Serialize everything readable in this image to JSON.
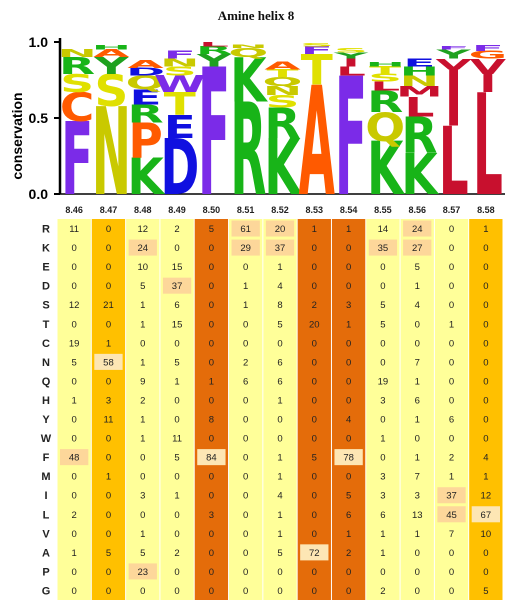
{
  "chart_data": [
    {
      "type": "sequence-logo",
      "title": "Amine helix 8",
      "ylabel": "conservation",
      "ylim": [
        0,
        1.0
      ],
      "yticks": [
        "0.0",
        "0.5",
        "1.0"
      ],
      "positions": [
        "8.46",
        "8.47",
        "8.48",
        "8.49",
        "8.50",
        "8.51",
        "8.52",
        "8.53",
        "8.54",
        "8.55",
        "8.56",
        "8.57",
        "8.58"
      ]
    },
    {
      "type": "heatmap",
      "title": "",
      "rows": [
        "R",
        "K",
        "E",
        "D",
        "S",
        "T",
        "C",
        "N",
        "Q",
        "H",
        "Y",
        "W",
        "F",
        "M",
        "I",
        "L",
        "V",
        "A",
        "P",
        "G"
      ],
      "columns": [
        "8.46",
        "8.47",
        "8.48",
        "8.49",
        "8.50",
        "8.51",
        "8.52",
        "8.53",
        "8.54",
        "8.55",
        "8.56",
        "8.57",
        "8.58"
      ],
      "values": [
        [
          11,
          0,
          12,
          2,
          5,
          61,
          20,
          1,
          1,
          14,
          24,
          0,
          1
        ],
        [
          0,
          0,
          24,
          0,
          0,
          29,
          37,
          0,
          0,
          35,
          27,
          0,
          0
        ],
        [
          0,
          0,
          10,
          15,
          0,
          0,
          1,
          0,
          0,
          0,
          5,
          0,
          0
        ],
        [
          0,
          0,
          5,
          37,
          0,
          1,
          4,
          0,
          0,
          0,
          1,
          0,
          0
        ],
        [
          12,
          21,
          1,
          6,
          0,
          1,
          8,
          2,
          3,
          5,
          4,
          0,
          0
        ],
        [
          0,
          0,
          1,
          15,
          0,
          0,
          5,
          20,
          1,
          5,
          0,
          1,
          0
        ],
        [
          19,
          1,
          0,
          0,
          0,
          0,
          0,
          0,
          0,
          0,
          0,
          0,
          0
        ],
        [
          5,
          58,
          1,
          5,
          0,
          2,
          6,
          0,
          0,
          0,
          7,
          0,
          0
        ],
        [
          0,
          0,
          9,
          1,
          1,
          6,
          6,
          0,
          0,
          19,
          1,
          0,
          0
        ],
        [
          1,
          3,
          2,
          0,
          0,
          0,
          1,
          0,
          0,
          3,
          6,
          0,
          0
        ],
        [
          0,
          11,
          1,
          0,
          8,
          0,
          0,
          0,
          4,
          0,
          1,
          6,
          0
        ],
        [
          0,
          0,
          1,
          11,
          0,
          0,
          0,
          0,
          0,
          1,
          0,
          0,
          0
        ],
        [
          48,
          0,
          0,
          5,
          84,
          0,
          1,
          5,
          78,
          0,
          1,
          2,
          4
        ],
        [
          0,
          1,
          0,
          0,
          0,
          0,
          1,
          0,
          0,
          3,
          7,
          1,
          1
        ],
        [
          0,
          0,
          3,
          1,
          0,
          0,
          4,
          0,
          5,
          3,
          3,
          37,
          12
        ],
        [
          2,
          0,
          0,
          0,
          3,
          0,
          1,
          0,
          6,
          6,
          13,
          45,
          67
        ],
        [
          0,
          0,
          1,
          0,
          0,
          0,
          1,
          0,
          1,
          1,
          1,
          7,
          10
        ],
        [
          1,
          5,
          5,
          2,
          0,
          0,
          5,
          72,
          2,
          1,
          0,
          0,
          0
        ],
        [
          0,
          0,
          23,
          0,
          0,
          0,
          0,
          0,
          0,
          0,
          0,
          0,
          0
        ],
        [
          0,
          0,
          0,
          0,
          0,
          0,
          0,
          0,
          0,
          2,
          0,
          0,
          5
        ]
      ],
      "column_colors": [
        "#ffff99",
        "#ffc000",
        "#ffff99",
        "#ffff99",
        "#e46c0a",
        "#ffff99",
        "#ffff99",
        "#e46c0a",
        "#e46c0a",
        "#ffff99",
        "#ffff99",
        "#ffff99",
        "#ffc000"
      ],
      "highlight_color": "#fde6b4"
    }
  ],
  "letter_colors": {
    "F": "#7b2be8",
    "W": "#7b2be8",
    "Y": "#1fa11f",
    "N": "#c9c900",
    "Q": "#c9c900",
    "K": "#18b418",
    "R": "#18b418",
    "H": "#18b418",
    "D": "#1010e0",
    "E": "#1010e0",
    "S": "#e0e000",
    "T": "#e0e000",
    "C": "#ff5a00",
    "A": "#ff5a00",
    "P": "#ff5a00",
    "G": "#ff5a00",
    "L": "#c8102e",
    "I": "#c8102e",
    "V": "#c8102e",
    "M": "#c8102e"
  },
  "logo_heights": [
    [
      [
        "F",
        0.48
      ],
      [
        "C",
        0.19
      ],
      [
        "S",
        0.12
      ],
      [
        "R",
        0.11
      ],
      [
        "N",
        0.05
      ]
    ],
    [
      [
        "N",
        0.58
      ],
      [
        "S",
        0.21
      ],
      [
        "Y",
        0.11
      ],
      [
        "A",
        0.05
      ],
      [
        "H",
        0.03
      ]
    ],
    [
      [
        "K",
        0.24
      ],
      [
        "P",
        0.23
      ],
      [
        "R",
        0.12
      ],
      [
        "E",
        0.1
      ],
      [
        "Q",
        0.09
      ],
      [
        "D",
        0.05
      ],
      [
        "A",
        0.05
      ]
    ],
    [
      [
        "D",
        0.37
      ],
      [
        "E",
        0.15
      ],
      [
        "T",
        0.15
      ],
      [
        "W",
        0.11
      ],
      [
        "S",
        0.06
      ],
      [
        "N",
        0.05
      ],
      [
        "F",
        0.05
      ]
    ],
    [
      [
        "F",
        0.84
      ],
      [
        "Y",
        0.08
      ],
      [
        "R",
        0.05
      ],
      [
        "L",
        0.03
      ]
    ],
    [
      [
        "R",
        0.61
      ],
      [
        "K",
        0.29
      ],
      [
        "Q",
        0.06
      ],
      [
        "N",
        0.02
      ]
    ],
    [
      [
        "K",
        0.37
      ],
      [
        "R",
        0.2
      ],
      [
        "S",
        0.08
      ],
      [
        "N",
        0.06
      ],
      [
        "Q",
        0.06
      ],
      [
        "T",
        0.05
      ],
      [
        "A",
        0.05
      ]
    ],
    [
      [
        "A",
        0.72
      ],
      [
        "T",
        0.2
      ],
      [
        "F",
        0.05
      ],
      [
        "S",
        0.02
      ]
    ],
    [
      [
        "F",
        0.78
      ],
      [
        "L",
        0.06
      ],
      [
        "I",
        0.05
      ],
      [
        "Y",
        0.04
      ],
      [
        "S",
        0.03
      ]
    ],
    [
      [
        "K",
        0.35
      ],
      [
        "Q",
        0.19
      ],
      [
        "R",
        0.14
      ],
      [
        "L",
        0.06
      ],
      [
        "S",
        0.05
      ],
      [
        "T",
        0.05
      ],
      [
        "H",
        0.03
      ]
    ],
    [
      [
        "K",
        0.27
      ],
      [
        "R",
        0.24
      ],
      [
        "L",
        0.13
      ],
      [
        "M",
        0.07
      ],
      [
        "N",
        0.07
      ],
      [
        "H",
        0.06
      ],
      [
        "E",
        0.05
      ]
    ],
    [
      [
        "L",
        0.45
      ],
      [
        "I",
        0.37
      ],
      [
        "V",
        0.07
      ],
      [
        "Y",
        0.06
      ],
      [
        "F",
        0.02
      ]
    ],
    [
      [
        "L",
        0.67
      ],
      [
        "I",
        0.12
      ],
      [
        "V",
        0.1
      ],
      [
        "G",
        0.05
      ],
      [
        "F",
        0.04
      ]
    ]
  ]
}
